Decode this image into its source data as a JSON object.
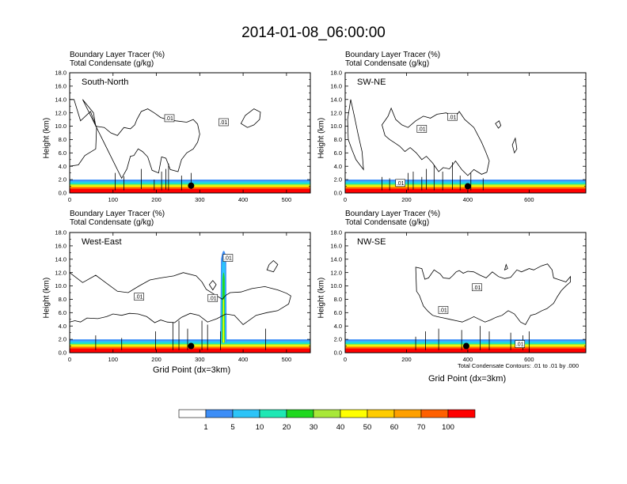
{
  "title": "2014-01-08_06:00:00",
  "panel_header_line1": "Boundary Layer Tracer   (%)",
  "panel_header_line2": "Total Condensate   (g/kg)",
  "ylabel": "Height (km)",
  "xlabel": "Grid Point (dx=3km)",
  "footnote": "Total Condensate Contours: .01 to .01 by .000",
  "colors": {
    "bins": [
      "#ffffff",
      "#3d8ef7",
      "#2cc4f8",
      "#1ee8b4",
      "#20d820",
      "#a8e838",
      "#ffff00",
      "#ffcc00",
      "#ffa000",
      "#ff6000",
      "#ff0000"
    ]
  },
  "chart_data": [
    {
      "type": "contour",
      "label": "South-North",
      "xlim": [
        0,
        555
      ],
      "ylim": [
        0,
        18
      ],
      "xticks": [
        0,
        100,
        200,
        300,
        400,
        500
      ],
      "yticks": [
        0,
        2,
        4,
        6,
        8,
        10,
        12,
        14,
        16,
        18
      ],
      "ytick_labels": [
        "0.0",
        "2.0",
        "4.0",
        "6.0",
        "8.0",
        "10.0",
        "12.0",
        "14.0",
        "16.0",
        "18.0"
      ],
      "contour_labels": [
        ".01",
        ".01"
      ],
      "marker": {
        "x": 280,
        "y": 1.1
      }
    },
    {
      "type": "contour",
      "label": "SW-NE",
      "xlim": [
        0,
        785
      ],
      "ylim": [
        0,
        18
      ],
      "xticks": [
        0,
        200,
        400,
        600
      ],
      "yticks": [
        0,
        2,
        4,
        6,
        8,
        10,
        12,
        14,
        16,
        18
      ],
      "ytick_labels": [
        "0.0",
        "2.0",
        "4.0",
        "6.0",
        "8.0",
        "10.0",
        "12.0",
        "14.0",
        "16.0",
        "18.0"
      ],
      "contour_labels": [
        ".01",
        ".01",
        ".01"
      ],
      "marker": {
        "x": 400,
        "y": 1.0
      }
    },
    {
      "type": "contour",
      "label": "West-East",
      "xlim": [
        0,
        555
      ],
      "ylim": [
        0,
        18
      ],
      "xticks": [
        0,
        100,
        200,
        300,
        400,
        500
      ],
      "yticks": [
        0,
        2,
        4,
        6,
        8,
        10,
        12,
        14,
        16,
        18
      ],
      "ytick_labels": [
        "0.0",
        "2.0",
        "4.0",
        "6.0",
        "8.0",
        "10.0",
        "12.0",
        "14.0",
        "16.0",
        "18.0"
      ],
      "contour_labels": [
        ".01",
        ".01",
        ".01"
      ],
      "marker": {
        "x": 280,
        "y": 1.0
      }
    },
    {
      "type": "contour",
      "label": "NW-SE",
      "xlim": [
        0,
        785
      ],
      "ylim": [
        0,
        18
      ],
      "xticks": [
        0,
        200,
        400,
        600
      ],
      "yticks": [
        0,
        2,
        4,
        6,
        8,
        10,
        12,
        14,
        16,
        18
      ],
      "ytick_labels": [
        "0.0",
        "2.0",
        "4.0",
        "6.0",
        "8.0",
        "10.0",
        "12.0",
        "14.0",
        "16.0",
        "18.0"
      ],
      "contour_labels": [
        ".01",
        ".01",
        ".01"
      ],
      "marker": {
        "x": 395,
        "y": 1.0
      }
    }
  ],
  "legend": {
    "levels": [
      "1",
      "5",
      "10",
      "20",
      "30",
      "40",
      "50",
      "60",
      "70",
      "100"
    ]
  }
}
